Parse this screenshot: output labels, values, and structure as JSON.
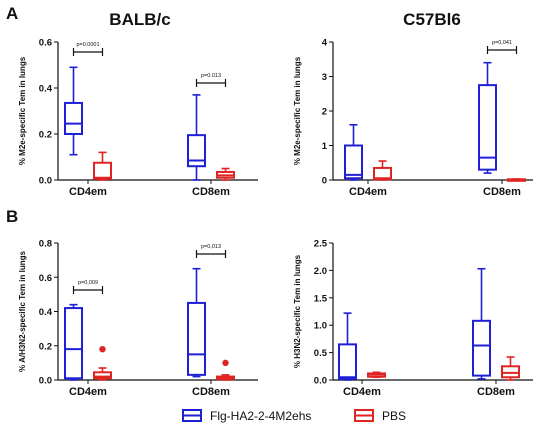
{
  "colors": {
    "blue": "#1f1fd6",
    "red": "#e02323",
    "axis": "#111111"
  },
  "panels": {
    "A": "A",
    "B": "B"
  },
  "legend": {
    "blue_label": "Flg-HA2-2-4M2ehs",
    "red_label": "PBS"
  },
  "chart_data": [
    {
      "type": "box",
      "panel": "A",
      "title": "BALB/c",
      "ylabel": "% M2e-specific Tem in lungs",
      "ylim": [
        0,
        0.6
      ],
      "yticks": [
        "0.0",
        "0.2",
        "0.4",
        "0.6"
      ],
      "categories": [
        "CD4em",
        "CD8em"
      ],
      "series": [
        {
          "color": "blue",
          "boxes": [
            {
              "min": 0.11,
              "q1": 0.2,
              "median": 0.245,
              "q3": 0.335,
              "max": 0.49
            },
            {
              "min": 0.0,
              "q1": 0.06,
              "median": 0.085,
              "q3": 0.195,
              "max": 0.37
            }
          ]
        },
        {
          "color": "red",
          "boxes": [
            {
              "min": 0.0,
              "q1": 0.005,
              "median": 0.01,
              "q3": 0.075,
              "max": 0.12
            },
            {
              "min": 0.0,
              "q1": 0.01,
              "median": 0.02,
              "q3": 0.035,
              "max": 0.05
            }
          ]
        }
      ],
      "annotations": [
        {
          "category": 0,
          "text": "p=0.0001"
        },
        {
          "category": 1,
          "text": "p=0.013"
        }
      ]
    },
    {
      "type": "box",
      "panel": "A",
      "title": "C57Bl6",
      "ylabel": "% M2e-specific Tem in lungs",
      "ylim": [
        0,
        4
      ],
      "yticks": [
        "0",
        "1",
        "2",
        "3",
        "4"
      ],
      "categories": [
        "CD4em",
        "CD8em"
      ],
      "series": [
        {
          "color": "blue",
          "boxes": [
            {
              "min": 0.0,
              "q1": 0.05,
              "median": 0.15,
              "q3": 1.0,
              "max": 1.6
            },
            {
              "min": 0.2,
              "q1": 0.3,
              "median": 0.65,
              "q3": 2.75,
              "max": 3.4
            }
          ]
        },
        {
          "color": "red",
          "boxes": [
            {
              "min": 0.0,
              "q1": 0.02,
              "median": 0.05,
              "q3": 0.35,
              "max": 0.55
            },
            {
              "min": 0.0,
              "q1": 0.0,
              "median": 0.0,
              "q3": 0.02,
              "max": 0.03
            }
          ]
        }
      ],
      "annotations": [
        {
          "category": 1,
          "text": "p=0,041"
        }
      ]
    },
    {
      "type": "box",
      "panel": "B",
      "title": "",
      "ylabel": "% A/H3N2-specific Tem in lungs",
      "ylim": [
        0,
        0.8
      ],
      "yticks": [
        "0.0",
        "0.2",
        "0.4",
        "0.6",
        "0.8"
      ],
      "categories": [
        "CD4em",
        "CD8em"
      ],
      "series": [
        {
          "color": "blue",
          "boxes": [
            {
              "min": 0.0,
              "q1": 0.01,
              "median": 0.18,
              "q3": 0.42,
              "max": 0.44
            },
            {
              "min": 0.02,
              "q1": 0.03,
              "median": 0.15,
              "q3": 0.45,
              "max": 0.65
            }
          ],
          "outliers": []
        },
        {
          "color": "red",
          "boxes": [
            {
              "min": 0.0,
              "q1": 0.01,
              "median": 0.02,
              "q3": 0.045,
              "max": 0.07
            },
            {
              "min": 0.0,
              "q1": 0.005,
              "median": 0.01,
              "q3": 0.02,
              "max": 0.03
            }
          ],
          "outliers": [
            [
              0,
              0.18
            ],
            [
              1,
              0.1
            ]
          ]
        }
      ],
      "annotations": [
        {
          "category": 0,
          "text": "p=0,009"
        },
        {
          "category": 1,
          "text": "p=0,013"
        }
      ]
    },
    {
      "type": "box",
      "panel": "B",
      "title": "",
      "ylabel": "% H3N2-specific Tem in lungs",
      "ylim": [
        0,
        2.5
      ],
      "yticks": [
        "0.0",
        "0.5",
        "1.0",
        "1.5",
        "2.0",
        "2.5"
      ],
      "categories": [
        "CD4em",
        "CD8em"
      ],
      "series": [
        {
          "color": "blue",
          "boxes": [
            {
              "min": 0.0,
              "q1": 0.02,
              "median": 0.05,
              "q3": 0.65,
              "max": 1.22
            },
            {
              "min": 0.02,
              "q1": 0.08,
              "median": 0.63,
              "q3": 1.08,
              "max": 2.03
            }
          ]
        },
        {
          "color": "red",
          "boxes": [
            {
              "min": 0.05,
              "q1": 0.06,
              "median": 0.1,
              "q3": 0.12,
              "max": 0.14
            },
            {
              "min": 0.0,
              "q1": 0.05,
              "median": 0.13,
              "q3": 0.25,
              "max": 0.42
            }
          ]
        }
      ],
      "annotations": []
    }
  ]
}
